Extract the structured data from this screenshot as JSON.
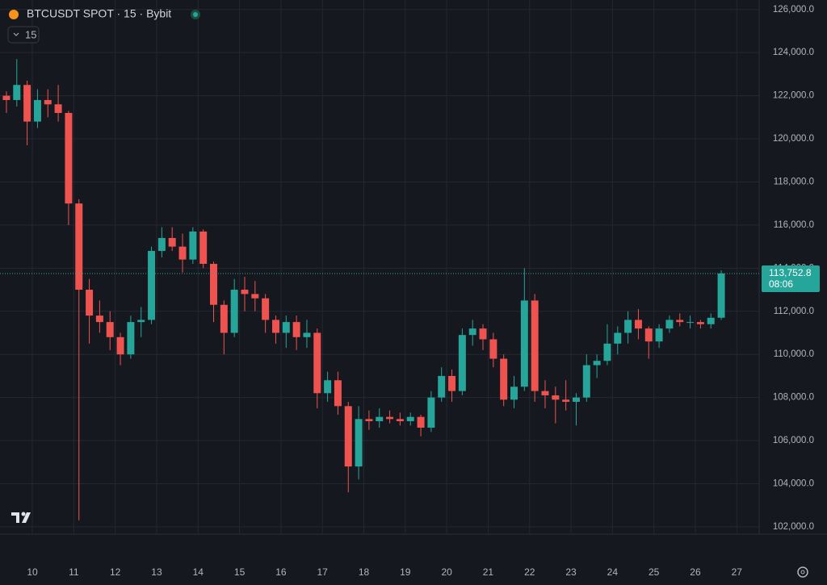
{
  "chart_data": {
    "type": "candlestick",
    "title": "BTCUSDT SPOT · 15 · Bybit",
    "interval": "15",
    "up_color": "#26a69a",
    "down_color": "#ef5350",
    "grid": true,
    "xlim": [
      9.22,
      27.54
    ],
    "xticks": [
      10,
      11,
      12,
      13,
      14,
      15,
      16,
      17,
      18,
      19,
      20,
      21,
      22,
      23,
      24,
      25,
      26,
      27
    ],
    "ylim": [
      101660,
      126440
    ],
    "yticks": [
      {
        "value": 102000,
        "label": "102,000.0"
      },
      {
        "value": 104000,
        "label": "104,000.0"
      },
      {
        "value": 106000,
        "label": "106,000.0"
      },
      {
        "value": 108000,
        "label": "108,000.0"
      },
      {
        "value": 110000,
        "label": "110,000.0"
      },
      {
        "value": 112000,
        "label": "112,000.0"
      },
      {
        "value": 114000,
        "label": "114,000.0"
      },
      {
        "value": 116000,
        "label": "116,000.0"
      },
      {
        "value": 118000,
        "label": "118,000.0"
      },
      {
        "value": 120000,
        "label": "120,000.0"
      },
      {
        "value": 122000,
        "label": "122,000.0"
      },
      {
        "value": 124000,
        "label": "124,000.0"
      },
      {
        "value": 126000,
        "label": "126,000.0"
      }
    ],
    "last_price": {
      "value": 113752.8,
      "label": "113,752.8"
    },
    "countdown": "08:06",
    "x": [
      9.25,
      9.5,
      9.75,
      10,
      10.25,
      10.5,
      10.75,
      11,
      11.25,
      11.5,
      11.75,
      12,
      12.25,
      12.5,
      12.75,
      13,
      13.25,
      13.5,
      13.75,
      14,
      14.25,
      14.5,
      14.75,
      15,
      15.25,
      15.5,
      15.75,
      16,
      16.25,
      16.5,
      16.75,
      17,
      17.25,
      17.5,
      17.75,
      18,
      18.25,
      18.5,
      18.75,
      19,
      19.25,
      19.5,
      19.75,
      20,
      20.25,
      20.5,
      20.75,
      21,
      21.25,
      21.5,
      21.75,
      22,
      22.25,
      22.5,
      22.75,
      23,
      23.25,
      23.5,
      23.75,
      24,
      24.25,
      24.5,
      24.75,
      25,
      25.25,
      25.5,
      25.75,
      26,
      26.25,
      26.5
    ],
    "open": [
      122000,
      121800,
      122500,
      120800,
      121800,
      121600,
      121200,
      117000,
      113000,
      111800,
      111500,
      110800,
      110000,
      111500,
      111600,
      114800,
      115400,
      115000,
      114400,
      115700,
      114200,
      112300,
      111000,
      113000,
      112800,
      112600,
      111600,
      111000,
      111500,
      110800,
      111000,
      108200,
      108800,
      107600,
      104800,
      107000,
      106900,
      107100,
      107000,
      106900,
      107100,
      106600,
      108000,
      109000,
      108300,
      110900,
      111200,
      110700,
      109800,
      107900,
      108500,
      112500,
      108300,
      108100,
      107900,
      107800,
      108000,
      109500,
      109700,
      110500,
      111000,
      111600,
      111200,
      110600,
      111200,
      111600,
      111500,
      111500,
      111400,
      111700
    ],
    "high": [
      122200,
      123700,
      122700,
      122300,
      122300,
      122500,
      121300,
      117200,
      113500,
      112500,
      112000,
      111000,
      111800,
      112200,
      115000,
      115900,
      115900,
      115600,
      115900,
      115800,
      114300,
      112500,
      113500,
      113600,
      113400,
      112800,
      111800,
      111800,
      111800,
      111600,
      111200,
      109200,
      109200,
      107800,
      107600,
      107400,
      107500,
      107400,
      107300,
      107300,
      107200,
      108300,
      109400,
      109300,
      111200,
      111600,
      111400,
      111000,
      110000,
      109000,
      114000,
      112800,
      108800,
      108500,
      108800,
      108200,
      110000,
      110000,
      111400,
      111300,
      112000,
      112100,
      111300,
      111400,
      111800,
      111900,
      111800,
      111600,
      111900,
      113900
    ],
    "low": [
      121200,
      121500,
      119700,
      120500,
      121000,
      120800,
      116000,
      102300,
      110500,
      111000,
      110200,
      109500,
      109800,
      110800,
      111400,
      114500,
      114800,
      113800,
      114200,
      114000,
      111500,
      110000,
      110800,
      112000,
      112000,
      111000,
      110500,
      110300,
      110200,
      110300,
      107500,
      107800,
      107200,
      103600,
      104200,
      106500,
      106600,
      106800,
      106700,
      106700,
      106200,
      106400,
      107800,
      107800,
      108100,
      110400,
      110200,
      109400,
      107600,
      107500,
      108300,
      107800,
      107500,
      106800,
      107400,
      106700,
      107800,
      108900,
      109500,
      110000,
      110500,
      110700,
      109800,
      110300,
      111000,
      111300,
      111200,
      111200,
      111200,
      111600
    ],
    "close": [
      121800,
      122500,
      120800,
      121800,
      121600,
      121200,
      117000,
      113000,
      111800,
      111500,
      110800,
      110000,
      111500,
      111600,
      114800,
      115400,
      115000,
      114400,
      115700,
      114200,
      112300,
      111000,
      113000,
      112800,
      112600,
      111600,
      111000,
      111500,
      110800,
      111000,
      108200,
      108800,
      107600,
      104800,
      107000,
      106900,
      107100,
      107000,
      106900,
      107100,
      106600,
      108000,
      109000,
      108300,
      110900,
      111200,
      110700,
      109800,
      107900,
      108500,
      112500,
      108300,
      108100,
      107900,
      107800,
      108000,
      109500,
      109700,
      110500,
      111000,
      111600,
      111200,
      110600,
      111200,
      111600,
      111500,
      111500,
      111400,
      111700,
      113752.8
    ]
  }
}
